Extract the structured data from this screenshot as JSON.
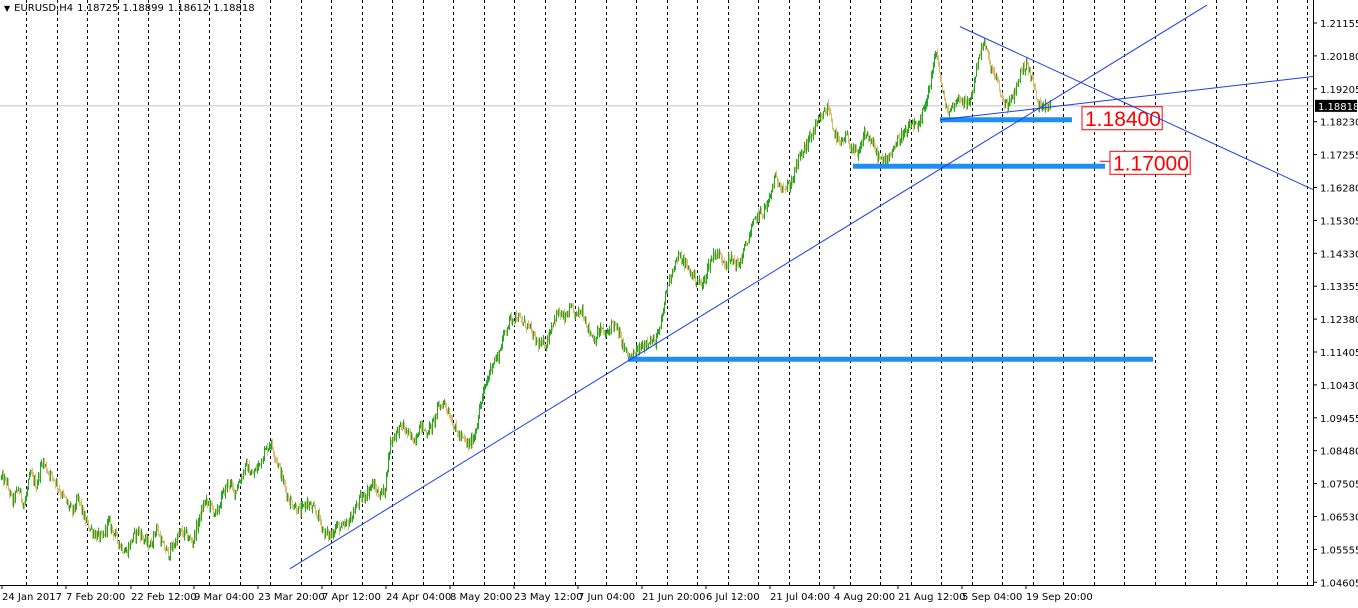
{
  "header": {
    "symbol": "EURUSD,H4",
    "open": "1.18725",
    "high": "1.18899",
    "low": "1.18612",
    "close": "1.18818"
  },
  "chart_data": {
    "type": "candlestick",
    "symbol": "EURUSD",
    "timeframe": "H4",
    "ylim": [
      1.0444,
      1.2155
    ],
    "y_ticks": [
      "1.21155",
      "1.20180",
      "1.19205",
      "1.18230",
      "1.17255",
      "1.16280",
      "1.15305",
      "1.14330",
      "1.13355",
      "1.12380",
      "1.11405",
      "1.10430",
      "1.09455",
      "1.08480",
      "1.07505",
      "1.06530",
      "1.05555",
      "1.04605"
    ],
    "x_ticks": [
      "24 Jan 2017",
      "7 Feb 20:00",
      "22 Feb 12:00",
      "9 Mar 04:00",
      "23 Mar 20:00",
      "7 Apr 12:00",
      "24 Apr 04:00",
      "8 May 20:00",
      "23 May 12:00",
      "7 Jun 04:00",
      "21 Jun 20:00",
      "6 Jul 12:00",
      "21 Jul 04:00",
      "4 Aug 20:00",
      "21 Aug 12:00",
      "5 Sep 04:00",
      "19 Sep 20:00"
    ],
    "current_price": "1.18818",
    "price_path": [
      [
        0,
        1.0765
      ],
      [
        6,
        1.075
      ],
      [
        12,
        1.069
      ],
      [
        18,
        1.073
      ],
      [
        24,
        1.068
      ],
      [
        30,
        1.0775
      ],
      [
        36,
        1.074
      ],
      [
        42,
        1.0815
      ],
      [
        48,
        1.078
      ],
      [
        54,
        1.076
      ],
      [
        60,
        1.072
      ],
      [
        66,
        1.069
      ],
      [
        72,
        1.066
      ],
      [
        78,
        1.07
      ],
      [
        84,
        1.064
      ],
      [
        90,
        1.061
      ],
      [
        96,
        1.059
      ],
      [
        102,
        1.058
      ],
      [
        108,
        1.063
      ],
      [
        114,
        1.0595
      ],
      [
        120,
        1.056
      ],
      [
        126,
        1.054
      ],
      [
        132,
        1.058
      ],
      [
        138,
        1.0605
      ],
      [
        144,
        1.0575
      ],
      [
        150,
        1.056
      ],
      [
        156,
        1.0615
      ],
      [
        162,
        1.056
      ],
      [
        168,
        1.0535
      ],
      [
        174,
        1.0565
      ],
      [
        180,
        1.06
      ],
      [
        186,
        1.059
      ],
      [
        192,
        1.057
      ],
      [
        198,
        1.063
      ],
      [
        204,
        1.069
      ],
      [
        210,
        1.068
      ],
      [
        216,
        1.065
      ],
      [
        222,
        1.071
      ],
      [
        228,
        1.075
      ],
      [
        234,
        1.072
      ],
      [
        240,
        1.076
      ],
      [
        246,
        1.08
      ],
      [
        252,
        1.077
      ],
      [
        258,
        1.08
      ],
      [
        264,
        1.084
      ],
      [
        270,
        1.087
      ],
      [
        276,
        1.082
      ],
      [
        282,
        1.076
      ],
      [
        288,
        1.07
      ],
      [
        294,
        1.068
      ],
      [
        300,
        1.066
      ],
      [
        306,
        1.069
      ],
      [
        312,
        1.067
      ],
      [
        318,
        1.065
      ],
      [
        324,
        1.0595
      ],
      [
        330,
        1.059
      ],
      [
        336,
        1.062
      ],
      [
        342,
        1.061
      ],
      [
        348,
        1.063
      ],
      [
        354,
        1.0665
      ],
      [
        360,
        1.07
      ],
      [
        366,
        1.0715
      ],
      [
        372,
        1.0745
      ],
      [
        378,
        1.0715
      ],
      [
        384,
        1.072
      ],
      [
        390,
        1.087
      ],
      [
        396,
        1.09
      ],
      [
        402,
        1.092
      ],
      [
        408,
        1.089
      ],
      [
        414,
        1.088
      ],
      [
        420,
        1.092
      ],
      [
        426,
        1.09
      ],
      [
        432,
        1.092
      ],
      [
        438,
        1.0975
      ],
      [
        444,
        1.099
      ],
      [
        450,
        1.095
      ],
      [
        456,
        1.09
      ],
      [
        462,
        1.088
      ],
      [
        468,
        1.086
      ],
      [
        474,
        1.089
      ],
      [
        480,
        1.098
      ],
      [
        486,
        1.105
      ],
      [
        492,
        1.111
      ],
      [
        498,
        1.113
      ],
      [
        504,
        1.12
      ],
      [
        510,
        1.124
      ],
      [
        516,
        1.125
      ],
      [
        522,
        1.123
      ],
      [
        528,
        1.122
      ],
      [
        534,
        1.118
      ],
      [
        540,
        1.116
      ],
      [
        546,
        1.117
      ],
      [
        552,
        1.123
      ],
      [
        558,
        1.126
      ],
      [
        564,
        1.124
      ],
      [
        570,
        1.127
      ],
      [
        576,
        1.125
      ],
      [
        582,
        1.127
      ],
      [
        588,
        1.121
      ],
      [
        594,
        1.118
      ],
      [
        600,
        1.121
      ],
      [
        606,
        1.119
      ],
      [
        612,
        1.123
      ],
      [
        618,
        1.12
      ],
      [
        624,
        1.115
      ],
      [
        630,
        1.112
      ],
      [
        636,
        1.114
      ],
      [
        642,
        1.116
      ],
      [
        648,
        1.118
      ],
      [
        654,
        1.117
      ],
      [
        660,
        1.121
      ],
      [
        666,
        1.133
      ],
      [
        672,
        1.139
      ],
      [
        678,
        1.143
      ],
      [
        684,
        1.141
      ],
      [
        690,
        1.138
      ],
      [
        696,
        1.136
      ],
      [
        702,
        1.134
      ],
      [
        708,
        1.14
      ],
      [
        714,
        1.144
      ],
      [
        720,
        1.143
      ],
      [
        726,
        1.141
      ],
      [
        732,
        1.142
      ],
      [
        738,
        1.14
      ],
      [
        744,
        1.145
      ],
      [
        750,
        1.15
      ],
      [
        756,
        1.155
      ],
      [
        762,
        1.156
      ],
      [
        768,
        1.159
      ],
      [
        774,
        1.166
      ],
      [
        780,
        1.165
      ],
      [
        786,
        1.163
      ],
      [
        792,
        1.166
      ],
      [
        798,
        1.172
      ],
      [
        804,
        1.175
      ],
      [
        810,
        1.179
      ],
      [
        816,
        1.182
      ],
      [
        822,
        1.185
      ],
      [
        828,
        1.188
      ],
      [
        834,
        1.18
      ],
      [
        840,
        1.176
      ],
      [
        846,
        1.179
      ],
      [
        852,
        1.175
      ],
      [
        858,
        1.173
      ],
      [
        864,
        1.18
      ],
      [
        870,
        1.178
      ],
      [
        876,
        1.174
      ],
      [
        882,
        1.171
      ],
      [
        888,
        1.173
      ],
      [
        894,
        1.176
      ],
      [
        900,
        1.179
      ],
      [
        906,
        1.18
      ],
      [
        912,
        1.183
      ],
      [
        918,
        1.181
      ],
      [
        924,
        1.188
      ],
      [
        930,
        1.195
      ],
      [
        936,
        1.205
      ],
      [
        942,
        1.192
      ],
      [
        948,
        1.186
      ],
      [
        954,
        1.189
      ],
      [
        960,
        1.191
      ],
      [
        966,
        1.188
      ],
      [
        972,
        1.192
      ],
      [
        978,
        1.203
      ],
      [
        984,
        1.207
      ],
      [
        990,
        1.2
      ],
      [
        996,
        1.196
      ],
      [
        1002,
        1.19
      ],
      [
        1008,
        1.188
      ],
      [
        1014,
        1.192
      ],
      [
        1020,
        1.198
      ],
      [
        1026,
        1.201
      ],
      [
        1032,
        1.196
      ],
      [
        1038,
        1.188
      ],
      [
        1044,
        1.189
      ],
      [
        1050,
        1.1882
      ]
    ],
    "horizontal_levels": [
      {
        "price": 1.184,
        "label": "1.18400",
        "color": "#1e8ff0"
      },
      {
        "price": 1.17,
        "label": "1.17000",
        "color": "#1e8ff0"
      },
      {
        "price": 1.112,
        "label": "",
        "color": "#1e8ff0"
      }
    ],
    "trendlines": [
      {
        "from": [
          290,
          1.049
        ],
        "to": [
          1207,
          1.2185
        ],
        "color": "#1c3cf0"
      },
      {
        "from": [
          960,
          1.212
        ],
        "to": [
          1313,
          1.163
        ],
        "color": "#1c3cf0"
      },
      {
        "from": [
          940,
          1.184
        ],
        "to": [
          1313,
          1.197
        ],
        "color": "#1c3cf0"
      }
    ],
    "colors": {
      "bull": "#22aa22",
      "bear": "#ddbb77",
      "grid": "#000000",
      "axis": "#000000",
      "price_line": "#c0c0c0",
      "annotation": "#ff0000"
    },
    "grid": true
  }
}
